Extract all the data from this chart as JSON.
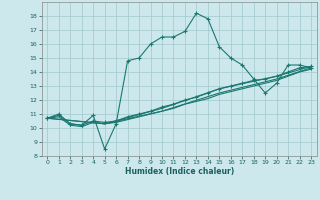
{
  "xlabel": "Humidex (Indice chaleur)",
  "bg_color": "#cde8ec",
  "grid_color": "#a0c8cc",
  "line_color": "#1a7870",
  "xlim": [
    -0.5,
    23.5
  ],
  "ylim": [
    8,
    19
  ],
  "xticks": [
    0,
    1,
    2,
    3,
    4,
    5,
    6,
    7,
    8,
    9,
    10,
    11,
    12,
    13,
    14,
    15,
    16,
    17,
    18,
    19,
    20,
    21,
    22,
    23
  ],
  "yticks": [
    8,
    9,
    10,
    11,
    12,
    13,
    14,
    15,
    16,
    17,
    18
  ],
  "curve1_x": [
    0,
    1,
    2,
    3,
    4,
    5,
    6,
    7,
    8,
    9,
    10,
    11,
    12,
    13,
    14,
    15,
    16,
    17,
    18,
    19,
    20,
    21,
    22,
    23
  ],
  "curve1_y": [
    10.7,
    11.0,
    10.3,
    10.2,
    10.9,
    8.5,
    10.3,
    14.8,
    15.0,
    16.0,
    16.5,
    16.5,
    16.9,
    18.2,
    17.8,
    15.8,
    15.0,
    14.5,
    13.5,
    12.5,
    13.2,
    14.5,
    14.5,
    14.3
  ],
  "curve2_x": [
    0,
    1,
    2,
    3,
    4,
    5,
    6,
    7,
    8,
    9,
    10,
    11,
    12,
    13,
    14,
    15,
    16,
    17,
    18,
    19,
    20,
    21,
    22,
    23
  ],
  "curve2_y": [
    10.7,
    10.9,
    10.3,
    10.2,
    10.5,
    10.4,
    10.5,
    10.8,
    11.0,
    11.2,
    11.5,
    11.7,
    12.0,
    12.2,
    12.5,
    12.8,
    13.0,
    13.2,
    13.4,
    13.5,
    13.7,
    14.0,
    14.3,
    14.4
  ],
  "curve3_x": [
    0,
    1,
    2,
    3,
    4,
    5,
    6,
    7,
    8,
    9,
    10,
    11,
    12,
    13,
    14,
    15,
    16,
    17,
    18,
    19,
    20,
    21,
    22,
    23
  ],
  "curve3_y": [
    10.7,
    10.8,
    10.2,
    10.1,
    10.4,
    10.3,
    10.4,
    10.6,
    10.8,
    11.0,
    11.2,
    11.4,
    11.7,
    11.9,
    12.1,
    12.4,
    12.6,
    12.8,
    13.0,
    13.2,
    13.4,
    13.7,
    14.0,
    14.2
  ],
  "curve4_x": [
    0,
    5,
    10,
    15,
    20,
    23
  ],
  "curve4_y": [
    10.7,
    10.3,
    11.4,
    12.8,
    13.7,
    14.4
  ],
  "curve5_x": [
    0,
    5,
    10,
    15,
    20,
    23
  ],
  "curve5_y": [
    10.7,
    10.3,
    11.2,
    12.5,
    13.5,
    14.3
  ]
}
